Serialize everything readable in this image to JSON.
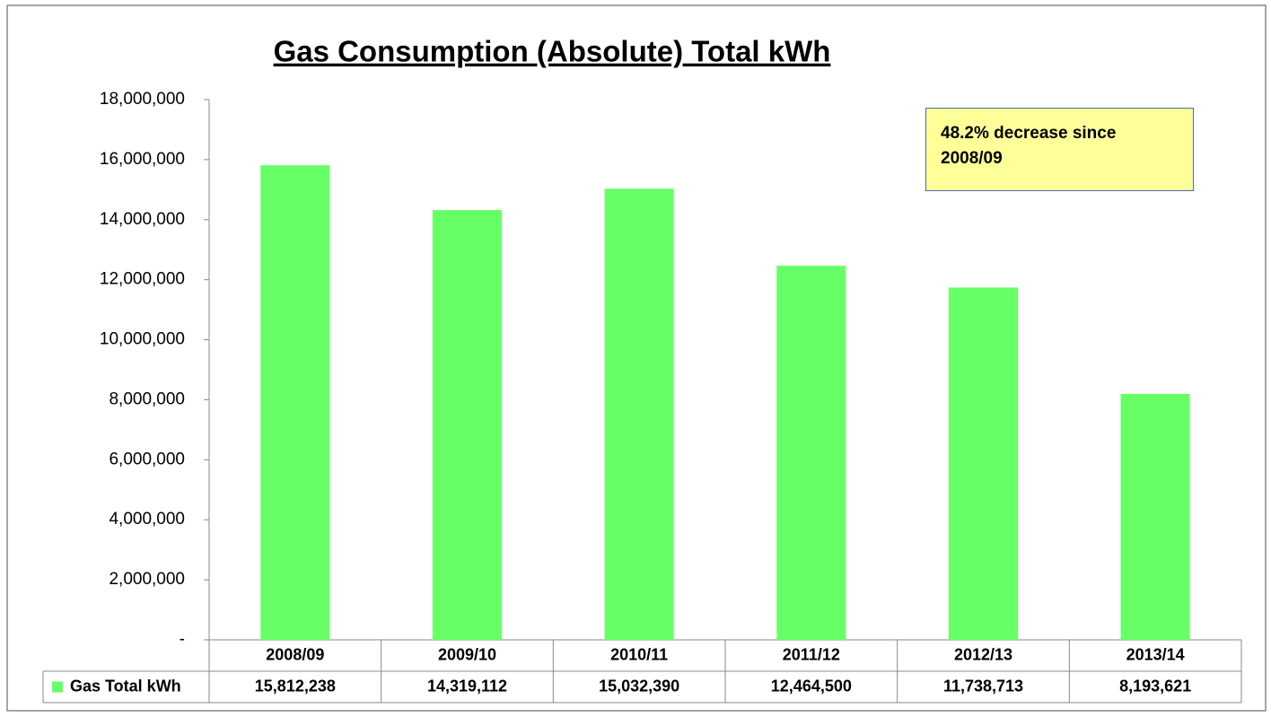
{
  "chart_data": {
    "type": "bar",
    "title": "Gas Consumption (Absolute) Total kWh",
    "categories": [
      "2008/09",
      "2009/10",
      "2010/11",
      "2011/12",
      "2012/13",
      "2013/14"
    ],
    "series": [
      {
        "name": "Gas Total kWh",
        "color": "#66ff66",
        "values": [
          15812238,
          14319112,
          15032390,
          12464500,
          11738713,
          8193621
        ],
        "value_labels": [
          "15,812,238",
          "14,319,112",
          "15,032,390",
          "12,464,500",
          "11,738,713",
          "8,193,621"
        ]
      }
    ],
    "ylim": [
      0,
      18000000
    ],
    "yticks": [
      {
        "value": 0,
        "label": "-"
      },
      {
        "value": 2000000,
        "label": "2,000,000"
      },
      {
        "value": 4000000,
        "label": "4,000,000"
      },
      {
        "value": 6000000,
        "label": "6,000,000"
      },
      {
        "value": 8000000,
        "label": "8,000,000"
      },
      {
        "value": 10000000,
        "label": "10,000,000"
      },
      {
        "value": 12000000,
        "label": "12,000,000"
      },
      {
        "value": 14000000,
        "label": "14,000,000"
      },
      {
        "value": 16000000,
        "label": "16,000,000"
      },
      {
        "value": 18000000,
        "label": "18,000,000"
      }
    ],
    "grid": false,
    "annotation": "48.2% decrease since 2008/09"
  }
}
